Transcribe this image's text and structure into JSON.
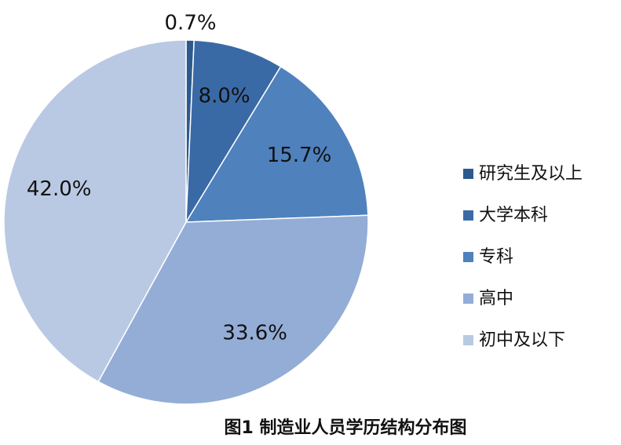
{
  "chart_data": {
    "type": "pie",
    "title": "图1 制造业人员学历结构分布图",
    "categories": [
      "研究生及以上",
      "大学本科",
      "专科",
      "高中",
      "初中及以下"
    ],
    "values": [
      0.7,
      8.0,
      15.7,
      33.6,
      42.0
    ],
    "value_labels": [
      "0.7%",
      "8.0%",
      "15.7%",
      "33.6%",
      "42.0%"
    ],
    "colors": [
      "#2d5a8e",
      "#3a6aa6",
      "#4f81bd",
      "#93add6",
      "#b9c9e3"
    ],
    "legend": "right"
  }
}
